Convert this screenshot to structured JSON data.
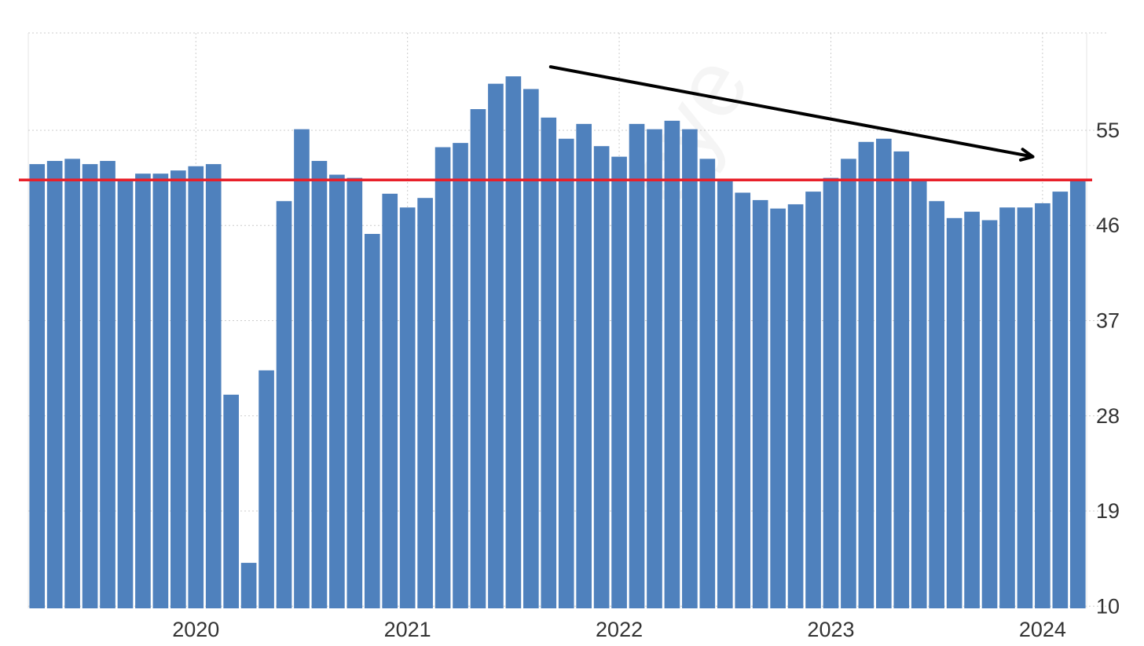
{
  "chart_data": {
    "type": "bar",
    "title": "",
    "xlabel": "",
    "ylabel": "",
    "x_tick_labels": [
      "2020",
      "2021",
      "2022",
      "2023",
      "2024"
    ],
    "y_tick_labels": [
      "10",
      "19",
      "28",
      "37",
      "46",
      "55"
    ],
    "y_ticks": [
      10,
      19,
      28,
      37,
      46,
      55
    ],
    "ylim": [
      9.8,
      64.2
    ],
    "grid": true,
    "legend": "none",
    "watermark_text": "eye",
    "colors": {
      "bar": "#4f81bd",
      "threshold_line": "#e8202a",
      "trend_arrow": "#000000",
      "grid": "#cccccc"
    },
    "threshold": 50.3,
    "trend_arrow": {
      "from": {
        "x": "2021-08",
        "y": 61.0
      },
      "to": {
        "x": "2023-12",
        "y": 52.5
      }
    },
    "x": [
      "2019-04",
      "2019-05",
      "2019-06",
      "2019-07",
      "2019-08",
      "2019-09",
      "2019-10",
      "2019-11",
      "2019-12",
      "2020-01",
      "2020-02",
      "2020-03",
      "2020-04",
      "2020-05",
      "2020-06",
      "2020-07",
      "2020-08",
      "2020-09",
      "2020-10",
      "2020-11",
      "2020-12",
      "2021-01",
      "2021-02",
      "2021-03",
      "2021-04",
      "2021-05",
      "2021-06",
      "2021-07",
      "2021-08",
      "2021-09",
      "2021-10",
      "2021-11",
      "2021-12",
      "2022-01",
      "2022-02",
      "2022-03",
      "2022-04",
      "2022-05",
      "2022-06",
      "2022-07",
      "2022-08",
      "2022-09",
      "2022-10",
      "2022-11",
      "2022-12",
      "2023-01",
      "2023-02",
      "2023-03",
      "2023-04",
      "2023-05",
      "2023-06",
      "2023-07",
      "2023-08",
      "2023-09",
      "2023-10",
      "2023-11",
      "2023-12",
      "2024-01",
      "2024-02",
      "2024-03"
    ],
    "values": [
      51.8,
      52.1,
      52.3,
      51.8,
      52.1,
      50.4,
      50.9,
      50.9,
      51.2,
      51.6,
      51.8,
      30.0,
      14.1,
      32.3,
      48.3,
      55.1,
      52.1,
      50.8,
      50.5,
      45.2,
      49.0,
      47.7,
      48.6,
      53.4,
      53.8,
      57.0,
      59.4,
      60.1,
      58.9,
      56.2,
      54.2,
      55.6,
      53.5,
      52.5,
      55.6,
      55.1,
      55.9,
      55.1,
      52.3,
      50.3,
      49.1,
      48.4,
      47.6,
      48.0,
      49.2,
      50.5,
      52.3,
      53.9,
      54.2,
      53.0,
      50.3,
      48.3,
      46.7,
      47.3,
      46.5,
      47.7,
      47.7,
      48.1,
      49.2,
      50.3
    ]
  }
}
